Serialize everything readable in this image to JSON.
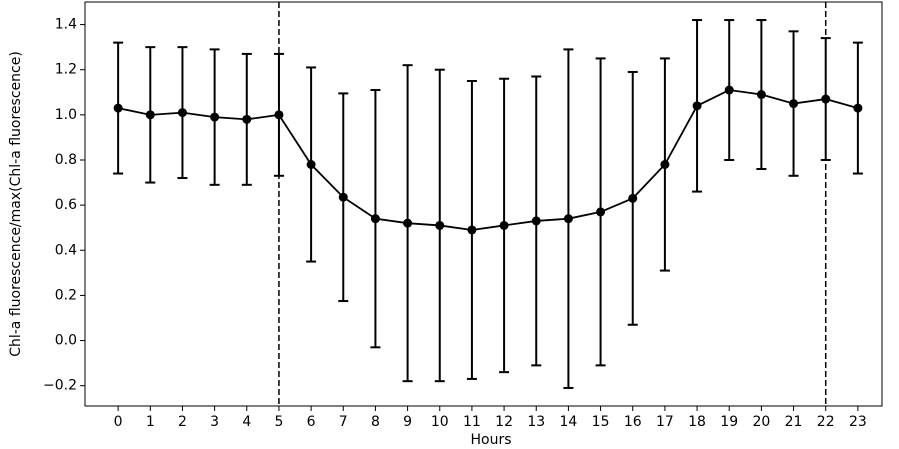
{
  "chart_data": {
    "type": "errorbar-line",
    "x_label": "Hours",
    "y_label": "Chl-a fluorescence/max(Chl-a fluorescence)",
    "x": [
      0,
      1,
      2,
      3,
      4,
      5,
      6,
      7,
      8,
      9,
      10,
      11,
      12,
      13,
      14,
      15,
      16,
      17,
      18,
      19,
      20,
      21,
      22,
      23
    ],
    "values": [
      1.03,
      1.0,
      1.01,
      0.99,
      0.98,
      1.0,
      0.78,
      0.635,
      0.54,
      0.52,
      0.51,
      0.49,
      0.51,
      0.53,
      0.54,
      0.57,
      0.63,
      0.78,
      1.04,
      1.11,
      1.09,
      1.05,
      1.07,
      1.03
    ],
    "errors": [
      0.29,
      0.3,
      0.29,
      0.3,
      0.29,
      0.27,
      0.43,
      0.46,
      0.57,
      0.7,
      0.69,
      0.66,
      0.65,
      0.64,
      0.75,
      0.68,
      0.56,
      0.47,
      0.38,
      0.31,
      0.33,
      0.32,
      0.27,
      0.29
    ],
    "color": "#000000",
    "vlines": [
      5,
      22
    ],
    "xlim": [
      -1.03,
      23.75
    ],
    "ylim": [
      -0.29,
      1.5
    ],
    "xticks": [
      0,
      1,
      2,
      3,
      4,
      5,
      6,
      7,
      8,
      9,
      10,
      11,
      12,
      13,
      14,
      15,
      16,
      17,
      18,
      19,
      20,
      21,
      22,
      23
    ],
    "yticks": [
      {
        "value": -0.2,
        "label": "−0.2"
      },
      {
        "value": 0,
        "label": "0.0"
      },
      0.2,
      0.4,
      0.6,
      0.8,
      {
        "value": 1,
        "label": "1.0"
      },
      1.2,
      1.4
    ]
  }
}
